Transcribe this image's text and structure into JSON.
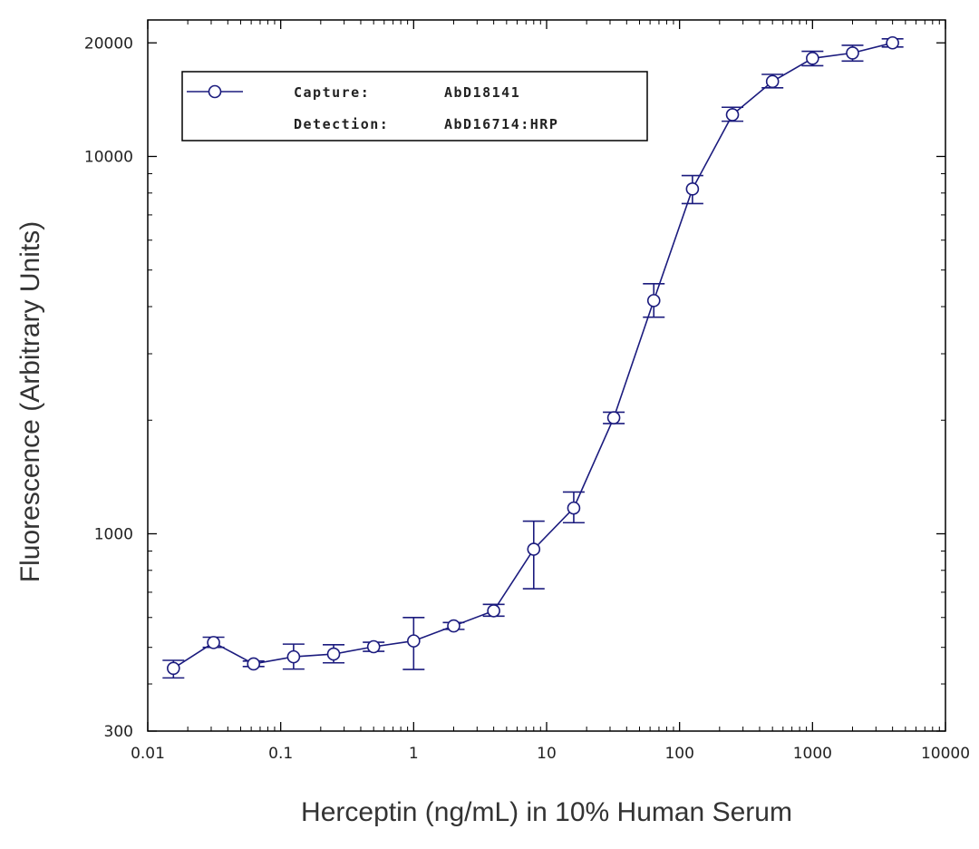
{
  "colors": {
    "series": "#1b1b7e",
    "axis": "#000000",
    "text": "#222222"
  },
  "chart_data": {
    "type": "scatter",
    "xlabel": "Herceptin (ng/mL) in 10% Human Serum",
    "ylabel": "Fluorescence (Arbitrary Units)",
    "xscale": "log",
    "yscale": "log",
    "xlim": [
      0.01,
      10000
    ],
    "ylim": [
      300,
      23000
    ],
    "x_ticks": [
      0.01,
      0.1,
      1,
      10,
      100,
      1000,
      10000
    ],
    "x_tick_labels": [
      "0.01",
      "0.1",
      "1",
      "10",
      "100",
      "1000",
      "10000"
    ],
    "y_ticks": [
      300,
      1000,
      10000,
      20000
    ],
    "y_tick_labels": [
      "300",
      "1000",
      "10000",
      "20000"
    ],
    "grid": false,
    "legend_position": "top-left",
    "legend": {
      "line1_key": "Capture:",
      "line1_value": "AbD18141",
      "line2_key": "Detection:",
      "line2_value": "AbD16714:HRP"
    },
    "series": [
      {
        "marker": "open-circle",
        "line": "solid",
        "points": [
          {
            "x": 0.0156,
            "y": 440,
            "err_low": 415,
            "err_high": 462
          },
          {
            "x": 0.03125,
            "y": 515,
            "err_low": 500,
            "err_high": 532
          },
          {
            "x": 0.0625,
            "y": 452,
            "err_low": 445,
            "err_high": 460
          },
          {
            "x": 0.125,
            "y": 472,
            "err_low": 438,
            "err_high": 510
          },
          {
            "x": 0.25,
            "y": 480,
            "err_low": 455,
            "err_high": 508
          },
          {
            "x": 0.5,
            "y": 502,
            "err_low": 488,
            "err_high": 516
          },
          {
            "x": 1,
            "y": 520,
            "err_low": 437,
            "err_high": 600
          },
          {
            "x": 2,
            "y": 570,
            "err_low": 558,
            "err_high": 582
          },
          {
            "x": 4,
            "y": 625,
            "err_low": 605,
            "err_high": 650
          },
          {
            "x": 8,
            "y": 910,
            "err_low": 715,
            "err_high": 1080
          },
          {
            "x": 16,
            "y": 1170,
            "err_low": 1070,
            "err_high": 1290
          },
          {
            "x": 32,
            "y": 2030,
            "err_low": 1960,
            "err_high": 2100
          },
          {
            "x": 64,
            "y": 4150,
            "err_low": 3750,
            "err_high": 4600
          },
          {
            "x": 125,
            "y": 8200,
            "err_low": 7500,
            "err_high": 8900
          },
          {
            "x": 250,
            "y": 12900,
            "err_low": 12400,
            "err_high": 13500
          },
          {
            "x": 500,
            "y": 15800,
            "err_low": 15200,
            "err_high": 16500
          },
          {
            "x": 1000,
            "y": 18200,
            "err_low": 17400,
            "err_high": 19000
          },
          {
            "x": 2000,
            "y": 18800,
            "err_low": 17900,
            "err_high": 19700
          },
          {
            "x": 4000,
            "y": 20000,
            "err_low": 19500,
            "err_high": 20500
          }
        ]
      }
    ]
  }
}
